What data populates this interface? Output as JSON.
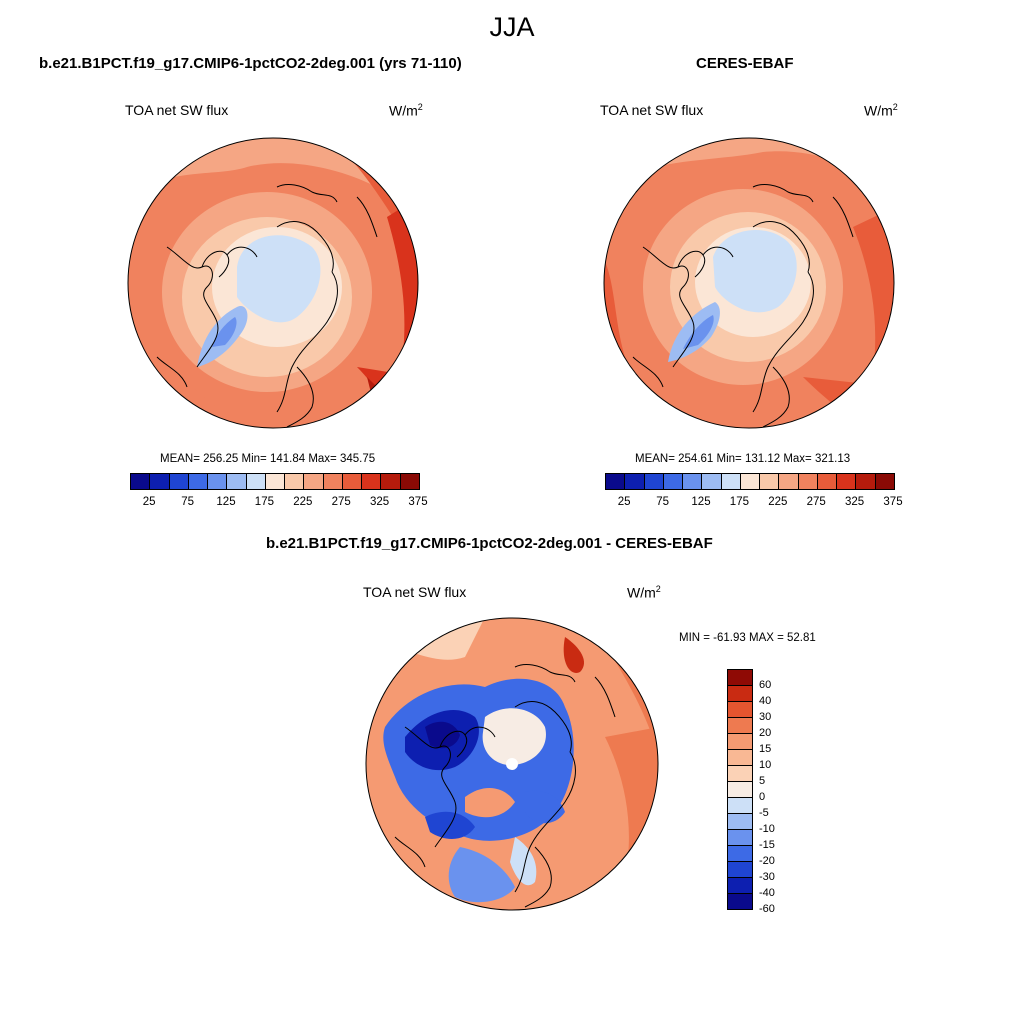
{
  "figure_title": "JJA",
  "colors": {
    "abs_palette": [
      "#0a0a8c",
      "#0d1fb0",
      "#1f45d2",
      "#3d6ae6",
      "#6a92ee",
      "#9dbcf3",
      "#cde0f7",
      "#fbe6d6",
      "#f9c9aa",
      "#f5a684",
      "#f0825e",
      "#e85c3a",
      "#d9331c",
      "#b51b0c",
      "#8a0a05"
    ],
    "diff_palette": [
      "#0a0a8c",
      "#0d1fb0",
      "#1f45d2",
      "#3d6ae6",
      "#6a92ee",
      "#9dbcf3",
      "#cde0f7",
      "#f7ece4",
      "#fbd2b6",
      "#f9b894",
      "#f59a72",
      "#ee7a50",
      "#e4552f",
      "#c92b12",
      "#8f0a05"
    ],
    "land_outline": "#000000"
  },
  "panels": [
    {
      "title": "b.e21.B1PCT.f19_g17.CMIP6-1pctCO2-2deg.001 (yrs 71-110)",
      "variable": "TOA net SW flux",
      "units": "W/m",
      "units_sup": "2",
      "stats": "MEAN= 256.25  Min= 141.84  Max= 345.75",
      "colorbar_ticks": [
        "25",
        "75",
        "125",
        "175",
        "225",
        "275",
        "325",
        "375"
      ]
    },
    {
      "title": "CERES-EBAF",
      "variable": "TOA net SW flux",
      "units": "W/m",
      "units_sup": "2",
      "stats": "MEAN= 254.61  Min= 131.12  Max= 321.13",
      "colorbar_ticks": [
        "25",
        "75",
        "125",
        "175",
        "225",
        "275",
        "325",
        "375"
      ]
    },
    {
      "title": "b.e21.B1PCT.f19_g17.CMIP6-1pctCO2-2deg.001 - CERES-EBAF",
      "variable": "TOA net SW flux",
      "units": "W/m",
      "units_sup": "2",
      "stats": "MIN = -61.93 MAX =  52.81",
      "colorbar_ticks": [
        "60",
        "40",
        "30",
        "20",
        "15",
        "10",
        "5",
        "0",
        "-5",
        "-10",
        "-15",
        "-20",
        "-30",
        "-40",
        "-60"
      ]
    }
  ]
}
